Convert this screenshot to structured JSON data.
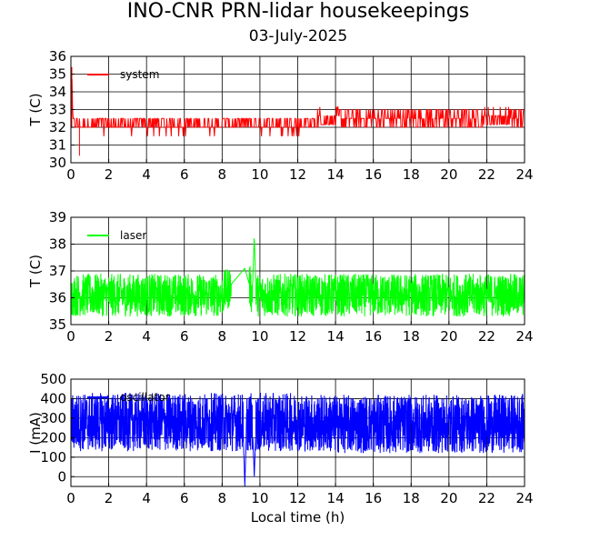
{
  "figure": {
    "title": "INO-CNR PRN-lidar housekeepings",
    "subtitle": "03-July-2025"
  },
  "chart_data": [
    {
      "type": "line",
      "id": "system",
      "ylabel": "T (C)",
      "xlabel": "",
      "xlim": [
        0,
        24
      ],
      "ylim": [
        30,
        36
      ],
      "xticks": [
        0,
        2,
        4,
        6,
        8,
        10,
        12,
        14,
        16,
        18,
        20,
        22,
        24
      ],
      "yticks": [
        30,
        31,
        32,
        33,
        34,
        35,
        36
      ],
      "grid": true,
      "legend_position": "top-left",
      "series": [
        {
          "name": "system",
          "color": "#ff0000",
          "x": [
            0.0,
            0.05,
            0.1,
            0.3,
            0.45,
            0.6,
            1.0,
            2.0,
            3.0,
            4.0,
            5.0,
            6.0,
            7.0,
            8.0,
            9.0,
            10.0,
            11.0,
            12.0,
            12.9,
            13.1,
            14.0,
            15.0,
            16.0,
            17.0,
            18.0,
            19.0,
            20.0,
            21.0,
            22.0,
            23.0,
            24.0
          ],
          "y": [
            32,
            35.4,
            32,
            32,
            30.4,
            32,
            32,
            32,
            32,
            32,
            32,
            32,
            32,
            32,
            32,
            32,
            32,
            32,
            32,
            33,
            33,
            32.5,
            32.5,
            32.5,
            32.5,
            32.5,
            32.5,
            32.5,
            33,
            33,
            32.5
          ]
        }
      ]
    },
    {
      "type": "line",
      "id": "laser",
      "ylabel": "T (C)",
      "xlabel": "",
      "xlim": [
        0,
        24
      ],
      "ylim": [
        35,
        39
      ],
      "xticks": [
        0,
        2,
        4,
        6,
        8,
        10,
        12,
        14,
        16,
        18,
        20,
        22,
        24
      ],
      "yticks": [
        35,
        36,
        37,
        38,
        39
      ],
      "grid": true,
      "legend_position": "top-left",
      "series": [
        {
          "name": "laser",
          "color": "#00ff00",
          "x": [
            0.0,
            2.0,
            4.0,
            6.0,
            8.0,
            9.2,
            9.6,
            9.7,
            9.8,
            10.0,
            12.0,
            14.0,
            16.0,
            18.0,
            20.0,
            22.0,
            24.0
          ],
          "y": [
            36.1,
            36.1,
            36.1,
            36.1,
            36.1,
            37.1,
            36.1,
            38.3,
            36.1,
            36.1,
            36.1,
            36.1,
            36.1,
            36.1,
            36.1,
            36.1,
            36.1
          ]
        }
      ]
    },
    {
      "type": "line",
      "id": "diode",
      "ylabel": "I (mA)",
      "xlabel": "Local time (h)",
      "xlim": [
        0,
        24
      ],
      "ylim": [
        -50,
        500
      ],
      "xticks": [
        0,
        2,
        4,
        6,
        8,
        10,
        12,
        14,
        16,
        18,
        20,
        22,
        24
      ],
      "yticks": [
        0,
        100,
        200,
        300,
        400,
        500
      ],
      "grid": true,
      "legend_position": "top-left",
      "series": [
        {
          "name": "oscillator",
          "color": "#0000ff",
          "x": [
            0.0,
            2.0,
            4.0,
            6.0,
            8.0,
            9.1,
            9.2,
            9.3,
            9.6,
            9.7,
            9.8,
            10.0,
            12.0,
            14.0,
            16.0,
            18.0,
            20.0,
            22.0,
            24.0
          ],
          "y": [
            280,
            280,
            280,
            280,
            280,
            280,
            -50,
            280,
            280,
            0,
            280,
            280,
            280,
            270,
            270,
            270,
            270,
            270,
            275
          ]
        }
      ]
    }
  ]
}
